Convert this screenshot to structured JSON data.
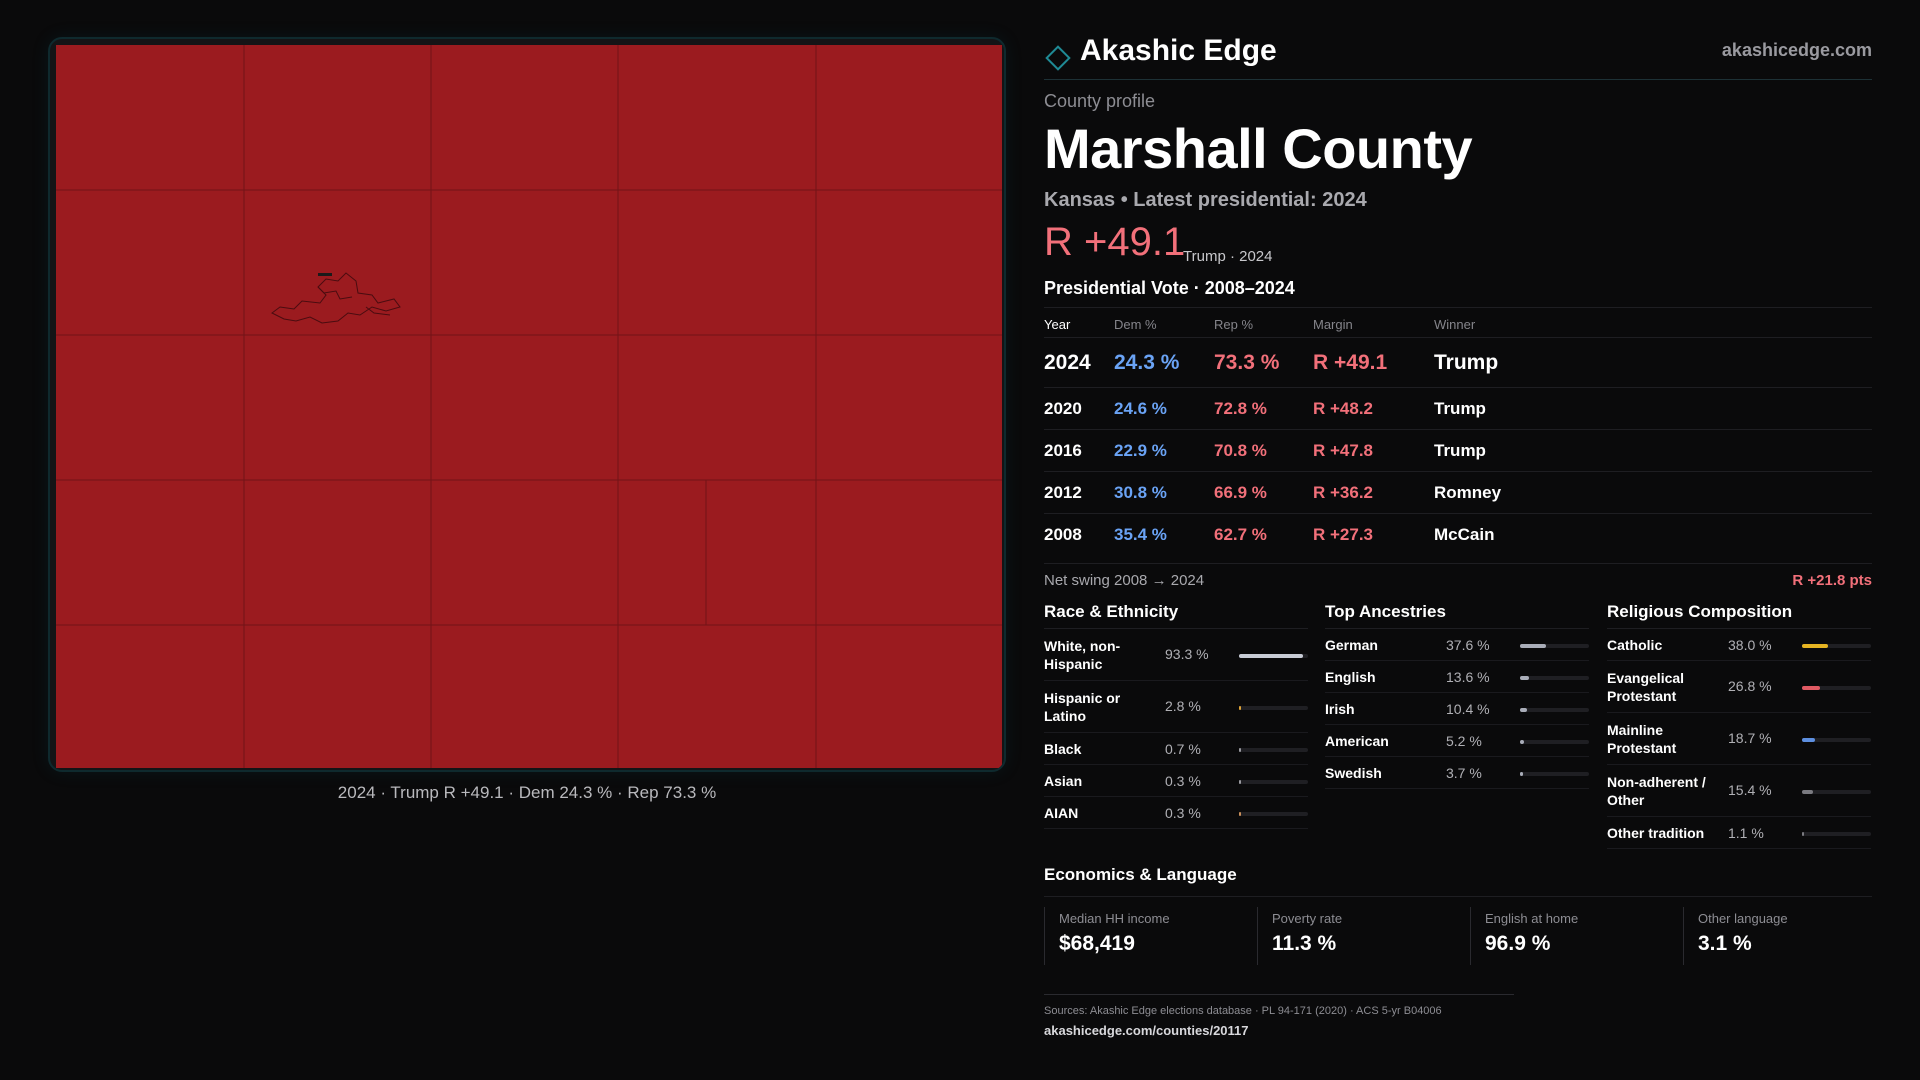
{
  "brand": {
    "name": "Akashic Edge",
    "url": "akashicedge.com"
  },
  "map": {
    "caption": "2024 · Trump R +49.1 · Dem 24.3 % · Rep 73.3 %",
    "fill_color": "#9b1b1f",
    "line_color": "#5e1014"
  },
  "profile": {
    "eyebrow": "County profile",
    "county": "Marshall County",
    "subtitle": "Kansas • Latest presidential: 2024",
    "headline_margin": "R +49.1",
    "headline_note": "Trump · 2024"
  },
  "vote": {
    "title": "Presidential Vote · 2008–2024",
    "headers": {
      "year": "Year",
      "dem": "Dem %",
      "rep": "Rep %",
      "margin": "Margin",
      "winner": "Winner"
    },
    "rows": [
      {
        "year": "2024",
        "dem": "24.3 %",
        "rep": "73.3 %",
        "margin": "R +49.1",
        "winner": "Trump"
      },
      {
        "year": "2020",
        "dem": "24.6 %",
        "rep": "72.8 %",
        "margin": "R +48.2",
        "winner": "Trump"
      },
      {
        "year": "2016",
        "dem": "22.9 %",
        "rep": "70.8 %",
        "margin": "R +47.8",
        "winner": "Trump"
      },
      {
        "year": "2012",
        "dem": "30.8 %",
        "rep": "66.9 %",
        "margin": "R +36.2",
        "winner": "Romney"
      },
      {
        "year": "2008",
        "dem": "35.4 %",
        "rep": "62.7 %",
        "margin": "R +27.3",
        "winner": "McCain"
      }
    ],
    "swing_label": "Net swing 2008 → 2024",
    "swing_value": "R +21.8 pts"
  },
  "race": {
    "title": "Race & Ethnicity",
    "items": [
      {
        "label": "White, non-Hispanic",
        "value": "93.3 %",
        "pct": 93.3,
        "color": "#c8ccd6"
      },
      {
        "label": "Hispanic or Latino",
        "value": "2.8 %",
        "pct": 2.8,
        "color": "#e0a437"
      },
      {
        "label": "Black",
        "value": "0.7 %",
        "pct": 0.7,
        "color": "#9a9aa0"
      },
      {
        "label": "Asian",
        "value": "0.3 %",
        "pct": 0.3,
        "color": "#9a9aa0"
      },
      {
        "label": "AIAN",
        "value": "0.3 %",
        "pct": 0.3,
        "color": "#c98f5a"
      }
    ]
  },
  "ancestry": {
    "title": "Top Ancestries",
    "items": [
      {
        "label": "German",
        "value": "37.6 %",
        "pct": 37.6,
        "color": "#a9adb8"
      },
      {
        "label": "English",
        "value": "13.6 %",
        "pct": 13.6,
        "color": "#a9adb8"
      },
      {
        "label": "Irish",
        "value": "10.4 %",
        "pct": 10.4,
        "color": "#a9adb8"
      },
      {
        "label": "American",
        "value": "5.2 %",
        "pct": 5.2,
        "color": "#a9adb8"
      },
      {
        "label": "Swedish",
        "value": "3.7 %",
        "pct": 3.7,
        "color": "#a9adb8"
      }
    ]
  },
  "religion": {
    "title": "Religious Composition",
    "items": [
      {
        "label": "Catholic",
        "value": "38.0 %",
        "pct": 38.0,
        "color": "#e6b422"
      },
      {
        "label": "Evangelical Protestant",
        "value": "26.8 %",
        "pct": 26.8,
        "color": "#e05a63"
      },
      {
        "label": "Mainline Protestant",
        "value": "18.7 %",
        "pct": 18.7,
        "color": "#5d8fe0"
      },
      {
        "label": "Non-adherent / Other",
        "value": "15.4 %",
        "pct": 15.4,
        "color": "#7a7a80"
      },
      {
        "label": "Other tradition",
        "value": "1.1 %",
        "pct": 1.1,
        "color": "#7a7a80"
      }
    ]
  },
  "economics": {
    "title": "Economics & Language",
    "cards": [
      {
        "label": "Median HH income",
        "value": "$68,419"
      },
      {
        "label": "Poverty rate",
        "value": "11.3 %"
      },
      {
        "label": "English at home",
        "value": "96.9 %"
      },
      {
        "label": "Other language",
        "value": "3.1 %"
      }
    ]
  },
  "sources": {
    "text": "Sources: Akashic Edge elections database · PL 94-171 (2020) · ACS 5-yr B04006",
    "url": "akashicedge.com/counties/20117"
  }
}
